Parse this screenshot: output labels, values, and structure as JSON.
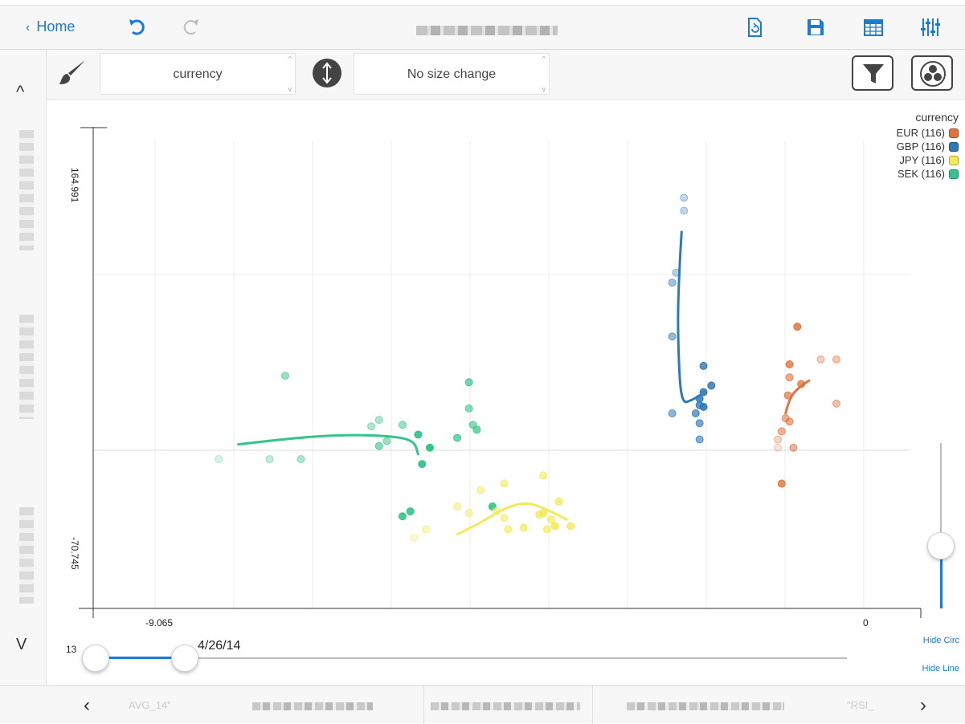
{
  "nav": {
    "home_label": "Home",
    "chevron": "‹",
    "icons": [
      "undo-icon",
      "redo-icon",
      "refresh-document-icon",
      "save-icon",
      "table-icon",
      "sliders-icon"
    ]
  },
  "toolbar": {
    "color_select_value": "currency",
    "size_select_value": "No size change",
    "icons": [
      "brush-icon",
      "resize-vertical-icon",
      "filter-icon",
      "venn-icon"
    ]
  },
  "chart_data": {
    "type": "scatter",
    "ylim": [
      -70.745,
      164.991
    ],
    "xlim": [
      -9.065,
      0
    ],
    "y_tick_labels": [
      "164.991",
      "-70.745"
    ],
    "x_tick_labels": [
      "-9.065",
      "0"
    ],
    "legend": {
      "title": "currency",
      "placement": "top-right",
      "items": [
        {
          "label": "EUR (116)",
          "color": "#e0733f"
        },
        {
          "label": "GBP (116)",
          "color": "#2f79b7"
        },
        {
          "label": "JPY (116)",
          "color": "#f3ea5a"
        },
        {
          "label": "SEK (116)",
          "color": "#35c48a"
        }
      ]
    },
    "series": [
      {
        "name": "SEK",
        "color": "#35c48a",
        "points": [
          [
            -8.25,
            -1
          ],
          [
            -7.6,
            -1
          ],
          [
            -7.4,
            50
          ],
          [
            -7.2,
            -1
          ],
          [
            -6.2,
            7
          ],
          [
            -5.8,
            -33
          ],
          [
            -5.9,
            -36
          ],
          [
            -5.7,
            14
          ],
          [
            -5.65,
            -4
          ],
          [
            -5.55,
            6
          ],
          [
            -6.2,
            23
          ],
          [
            -6.3,
            19
          ],
          [
            -5.05,
            46
          ],
          [
            -4.95,
            17
          ],
          [
            -5.2,
            12
          ],
          [
            -5.05,
            30
          ],
          [
            -5.0,
            20
          ],
          [
            -4.75,
            -30
          ],
          [
            -5.9,
            20
          ],
          [
            -6.1,
            10
          ]
        ],
        "alpha": [
          0.2,
          0.3,
          0.5,
          0.4,
          0.6,
          0.9,
          0.9,
          0.95,
          0.95,
          1,
          0.4,
          0.4,
          0.7,
          0.7,
          0.7,
          0.6,
          0.6,
          0.9,
          0.5,
          0.5
        ],
        "trail": [
          [
            -8.0,
            8
          ],
          [
            -7.3,
            12
          ],
          [
            -6.6,
            14
          ],
          [
            -6.0,
            13
          ],
          [
            -5.75,
            10
          ],
          [
            -5.7,
            2
          ]
        ]
      },
      {
        "name": "JPY",
        "color": "#f3ea5a",
        "points": [
          [
            -5.75,
            -49
          ],
          [
            -5.6,
            -44
          ],
          [
            -5.2,
            -30
          ],
          [
            -5.05,
            -34
          ],
          [
            -4.9,
            -20
          ],
          [
            -4.7,
            -33
          ],
          [
            -4.55,
            -44
          ],
          [
            -4.6,
            -37
          ],
          [
            -4.35,
            -43
          ],
          [
            -4.15,
            -35
          ],
          [
            -4.1,
            -34
          ],
          [
            -4.05,
            -44
          ],
          [
            -3.9,
            -27
          ],
          [
            -3.95,
            -42
          ],
          [
            -3.75,
            -42
          ],
          [
            -4.0,
            -38
          ],
          [
            -4.6,
            -16
          ],
          [
            -4.1,
            -11
          ]
        ],
        "alpha": [
          0.3,
          0.4,
          0.5,
          0.5,
          0.5,
          0.6,
          0.6,
          0.6,
          0.7,
          0.8,
          0.9,
          0.7,
          0.8,
          0.9,
          0.8,
          0.7,
          0.6,
          0.6
        ],
        "trail": [
          [
            -5.2,
            -47
          ],
          [
            -4.9,
            -40
          ],
          [
            -4.6,
            -31
          ],
          [
            -4.3,
            -27
          ],
          [
            -4.0,
            -33
          ],
          [
            -3.8,
            -38
          ]
        ]
      },
      {
        "name": "GBP",
        "color": "#2f79b7",
        "points": [
          [
            -2.3,
            159
          ],
          [
            -2.3,
            151
          ],
          [
            -2.4,
            113
          ],
          [
            -2.45,
            107
          ],
          [
            -2.45,
            74
          ],
          [
            -2.45,
            27
          ],
          [
            -2.15,
            27
          ],
          [
            -2.1,
            32
          ],
          [
            -2.05,
            40
          ],
          [
            -2.1,
            36
          ],
          [
            -2.1,
            11
          ],
          [
            -2.1,
            21
          ],
          [
            -2.05,
            56
          ],
          [
            -1.95,
            44
          ],
          [
            -2.05,
            31
          ]
        ],
        "alpha": [
          0.3,
          0.3,
          0.35,
          0.45,
          0.5,
          0.55,
          0.7,
          0.8,
          0.9,
          0.85,
          0.6,
          0.65,
          0.8,
          0.85,
          0.9
        ],
        "trail": [
          [
            -2.33,
            138
          ],
          [
            -2.38,
            100
          ],
          [
            -2.37,
            60
          ],
          [
            -2.33,
            33
          ],
          [
            -2.2,
            35
          ],
          [
            -2.1,
            38
          ]
        ]
      },
      {
        "name": "EUR",
        "color": "#e0733f",
        "points": [
          [
            -0.85,
            80
          ],
          [
            -0.95,
            57
          ],
          [
            -0.95,
            49
          ],
          [
            -0.97,
            38
          ],
          [
            -0.8,
            45
          ],
          [
            -0.55,
            60
          ],
          [
            -0.35,
            60
          ],
          [
            -0.35,
            33
          ],
          [
            -0.95,
            22
          ],
          [
            -1.1,
            11
          ],
          [
            -1.05,
            16
          ],
          [
            -1.0,
            24
          ],
          [
            -0.9,
            6
          ],
          [
            -1.05,
            -16
          ],
          [
            -1.1,
            6
          ]
        ],
        "alpha": [
          0.85,
          0.8,
          0.6,
          0.7,
          0.75,
          0.35,
          0.4,
          0.45,
          0.6,
          0.3,
          0.55,
          0.55,
          0.55,
          0.8,
          0.2
        ],
        "trail": [
          [
            -1.0,
            27
          ],
          [
            -0.95,
            37
          ],
          [
            -0.8,
            44
          ],
          [
            -0.7,
            47
          ]
        ]
      }
    ]
  },
  "time_slider": {
    "start_label": "13",
    "current_label": "4/26/14",
    "progress": 0.12
  },
  "side_links": {
    "hide_circles": "Hide Circ",
    "hide_lines": "Hide Line"
  },
  "bottom_tabs": {
    "tab1_label": "AVG_14\"",
    "tab5_label": "\"RSI_",
    "prev": "‹",
    "next": "›"
  },
  "rail": {
    "up": "^",
    "down": "V"
  }
}
